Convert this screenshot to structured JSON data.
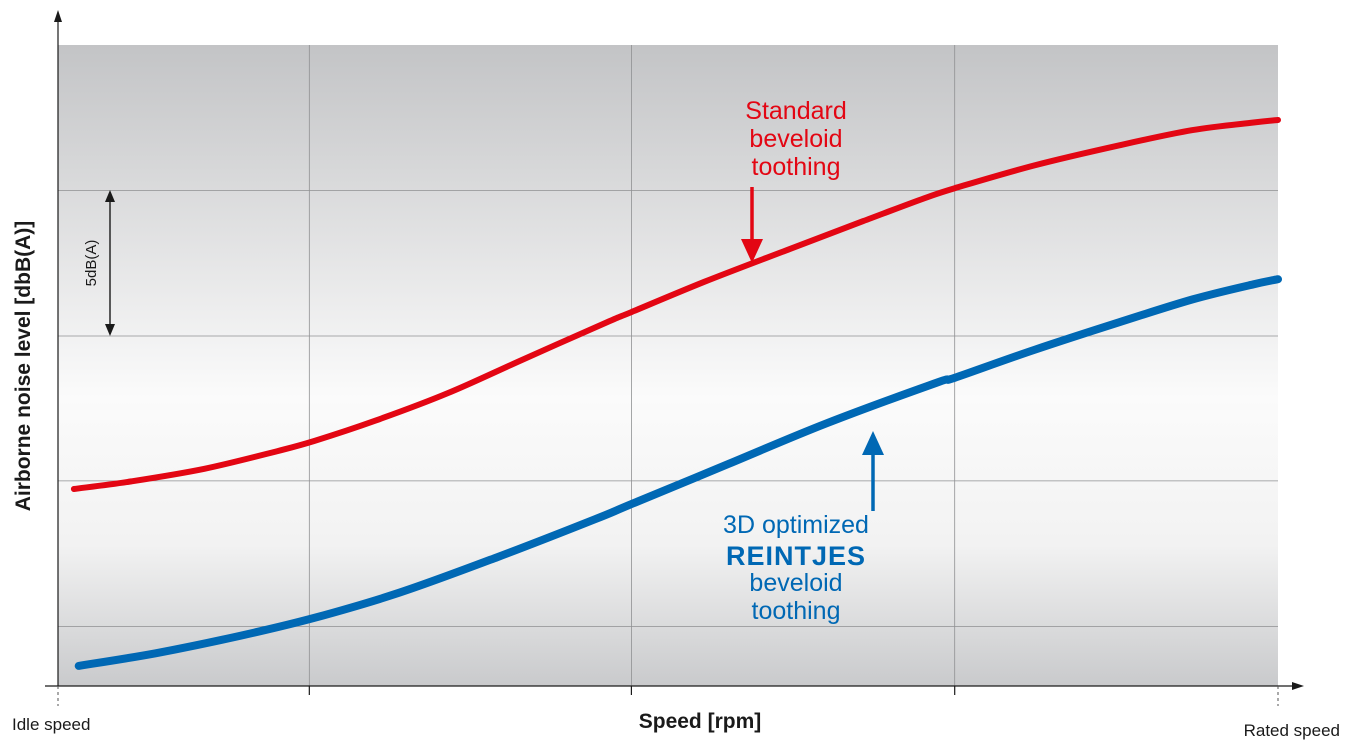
{
  "chart_data": {
    "type": "line",
    "title": "",
    "xlabel": "Speed [rpm]",
    "ylabel": "Airborne noise level [dbB(A)]",
    "x_start_label": "Idle speed",
    "x_end_label": "Rated speed",
    "xlim": [
      0,
      1
    ],
    "ylim": [
      0,
      22
    ],
    "grid": true,
    "scale_annotation": "5dB(A)",
    "series": [
      {
        "key": "standard",
        "color": "#e30613",
        "label_lines": [
          "Standard",
          "beveloid",
          "toothing"
        ],
        "x": [
          0.013,
          0.06,
          0.12,
          0.18,
          0.21,
          0.26,
          0.32,
          0.38,
          0.45,
          0.47,
          0.53,
          0.6,
          0.66,
          0.71,
          0.735,
          0.8,
          0.87,
          0.93,
          0.98,
          1.0
        ],
        "y": [
          7.4,
          7.7,
          8.2,
          8.9,
          9.3,
          10.1,
          11.2,
          12.5,
          14.0,
          14.4,
          15.6,
          16.9,
          18.0,
          18.9,
          19.3,
          20.2,
          21.0,
          21.6,
          21.9,
          22.0
        ]
      },
      {
        "key": "reintjes",
        "color": "#0068b4",
        "label_lines": [
          "3D optimized",
          "REINTJES",
          "beveloid",
          "toothing"
        ],
        "x": [
          0.017,
          0.08,
          0.15,
          0.21,
          0.28,
          0.36,
          0.44,
          0.47,
          0.55,
          0.63,
          0.72,
          0.735,
          0.8,
          0.87,
          0.93,
          0.98,
          1.0
        ],
        "y": [
          0.4,
          0.9,
          1.6,
          2.3,
          3.3,
          4.7,
          6.2,
          6.8,
          8.4,
          10.0,
          11.6,
          11.8,
          12.9,
          14.0,
          14.9,
          15.5,
          15.7
        ]
      }
    ]
  }
}
